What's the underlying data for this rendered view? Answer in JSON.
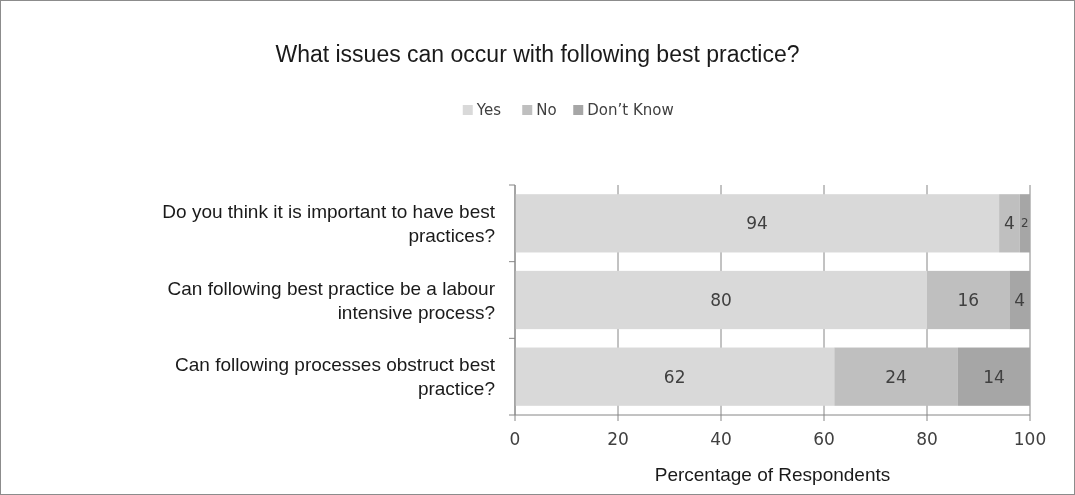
{
  "chart_data": {
    "type": "bar",
    "orientation": "horizontal",
    "stacked": true,
    "title": "What issues can occur with following best practice?",
    "xlabel": "Percentage of Respondents",
    "categories": [
      "Do you think it is important to have best practices?",
      "Can following best practice be a labour intensive process?",
      "Can following processes obstruct best practice?"
    ],
    "series": [
      {
        "name": "Yes",
        "color": "#d9d9d9",
        "values": [
          94,
          80,
          62
        ]
      },
      {
        "name": "No",
        "color": "#bfbfbf",
        "values": [
          4,
          16,
          24
        ]
      },
      {
        "name": "Don’t Know",
        "color": "#a6a6a6",
        "values": [
          2,
          4,
          14
        ]
      }
    ],
    "xlim": [
      0,
      100
    ],
    "xticks": [
      0,
      20,
      40,
      60,
      80,
      100
    ],
    "grid": "x",
    "legend": "top",
    "data_labels": true
  }
}
